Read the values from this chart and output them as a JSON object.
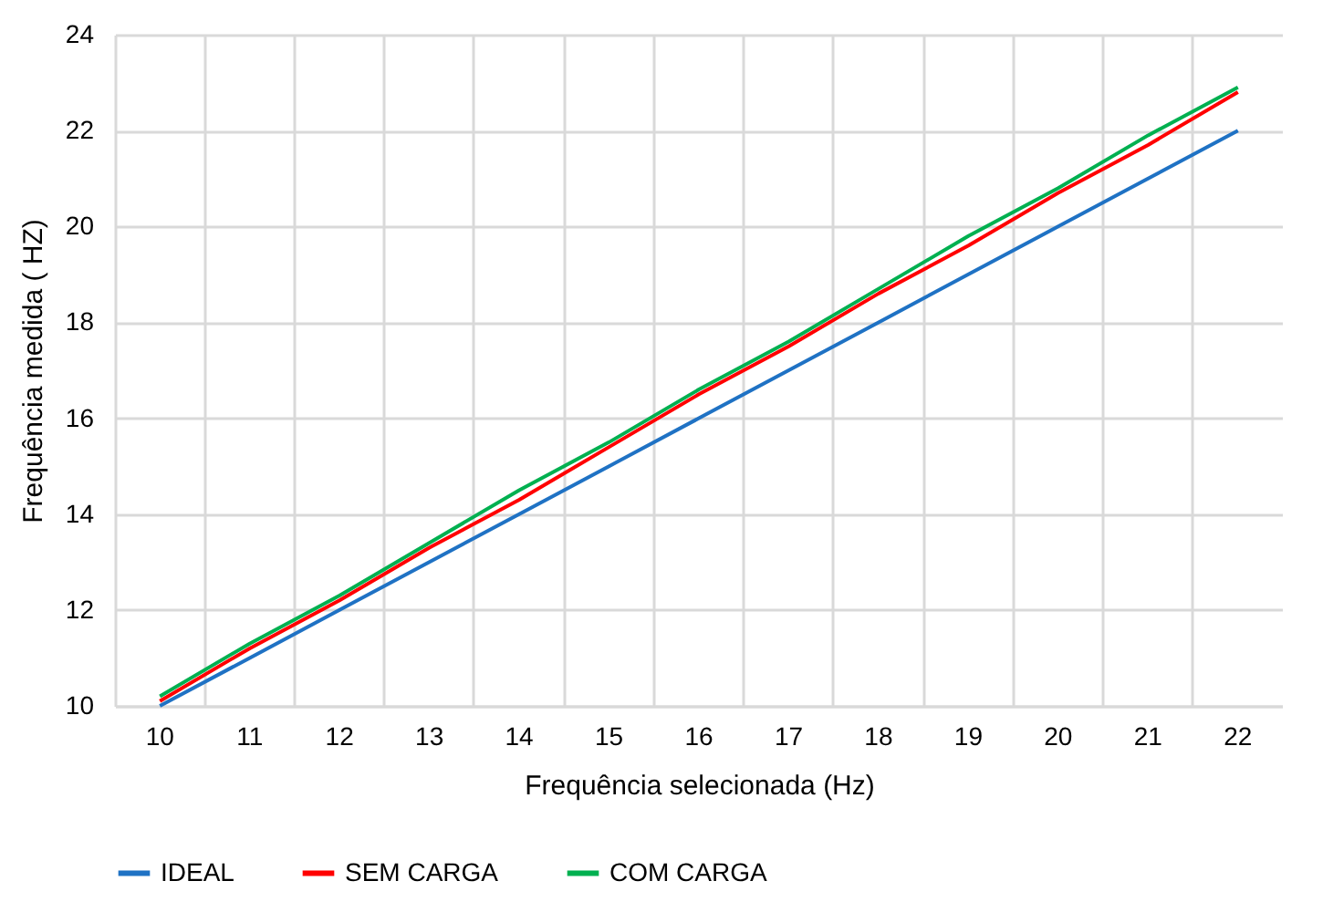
{
  "chart_data": {
    "type": "line",
    "xlabel": "Frequência selecionada (Hz)",
    "ylabel": "Frequência medida ( HZ)",
    "categories": [
      "10",
      "11",
      "12",
      "13",
      "14",
      "15",
      "16",
      "17",
      "18",
      "19",
      "20",
      "21",
      "22"
    ],
    "series": [
      {
        "name": "IDEAL",
        "color": "#1f72c4",
        "values": [
          10,
          11,
          12,
          13,
          14,
          15,
          16,
          17,
          18,
          19,
          20,
          21,
          22
        ]
      },
      {
        "name": "SEM CARGA",
        "color": "#ff0000",
        "values": [
          10.1,
          11.2,
          12.2,
          13.3,
          14.3,
          15.4,
          16.5,
          17.5,
          18.6,
          19.6,
          20.7,
          21.7,
          22.8
        ]
      },
      {
        "name": "COM CARGA",
        "color": "#00b050",
        "values": [
          10.2,
          11.3,
          12.3,
          13.4,
          14.5,
          15.5,
          16.6,
          17.6,
          18.7,
          19.8,
          20.8,
          21.9,
          22.9
        ]
      }
    ],
    "ylim": [
      10,
      24
    ],
    "yticks": [
      10,
      12,
      14,
      16,
      18,
      20,
      22,
      24
    ],
    "grid": true,
    "legend": "bottom",
    "marker": "none",
    "line_style": "solid"
  }
}
